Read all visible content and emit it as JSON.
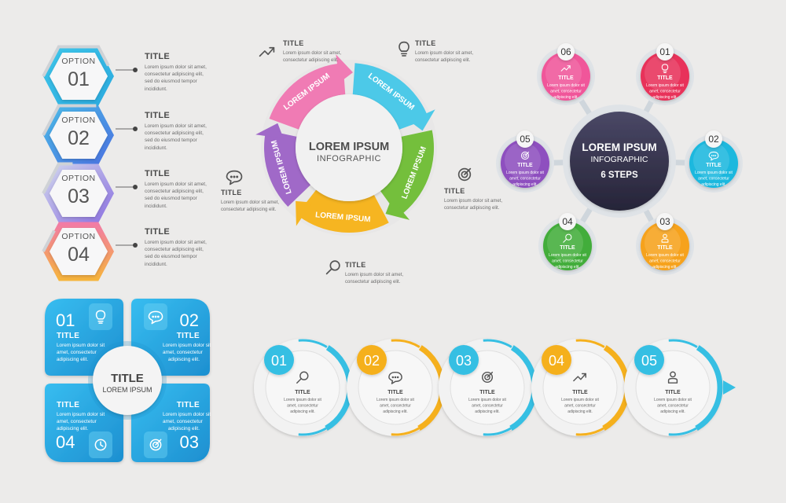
{
  "body_lines": [
    "Lorem ipsum dolor sit amet,",
    "consectetur adipiscing elit,",
    "sed do eiusmod tempor",
    "incididunt."
  ],
  "short_lines": [
    "Lorem ipsum dolor sit",
    "amet, consectetur",
    "adipiscing elit."
  ],
  "mini_lines": [
    "Lorem ipsum dolor sit amet,",
    "consectetur adipiscing elit."
  ],
  "hex_options": {
    "word": "OPTION",
    "items": [
      {
        "number": "01",
        "title": "TITLE",
        "color": "#2fb9e3"
      },
      {
        "number": "02",
        "title": "TITLE",
        "color": "#4a8be0"
      },
      {
        "number": "03",
        "title": "TITLE",
        "color": "#8a7fe0"
      },
      {
        "number": "04",
        "title": "TITLE",
        "color": "#f59a3c"
      }
    ]
  },
  "wheel": {
    "title": "LOREM IPSUM",
    "subtitle": "INFOGRAPHIC",
    "segments": [
      {
        "label": "LOREM IPSUM",
        "color": "#f07bb4"
      },
      {
        "label": "LOREM IPSUM",
        "color": "#4cc9e8"
      },
      {
        "label": "LOREM IPSUM",
        "color": "#74bf3c"
      },
      {
        "label": "LOREM IPSUM",
        "color": "#f6b521"
      },
      {
        "label": "LOREM IPSUM",
        "color": "#a069c8"
      }
    ],
    "callouts": [
      {
        "title": "TITLE",
        "icon": "trend-arrow-icon"
      },
      {
        "title": "TITLE",
        "icon": "lightbulb-icon"
      },
      {
        "title": "TITLE",
        "icon": "target-icon"
      },
      {
        "title": "TITLE",
        "icon": "magnifier-icon"
      },
      {
        "title": "TITLE",
        "icon": "chat-bubble-icon"
      }
    ]
  },
  "six_steps": {
    "title": "LOREM IPSUM",
    "subtitle": "INFOGRAPHIC",
    "steps_label": "6 STEPS",
    "center_color": "#363450",
    "nodes": [
      {
        "number": "06",
        "title": "TITLE",
        "color": "#f0569a",
        "icon": "trend-arrow-icon"
      },
      {
        "number": "01",
        "title": "TITLE",
        "color": "#e8335a",
        "icon": "lightbulb-icon"
      },
      {
        "number": "05",
        "title": "TITLE",
        "color": "#8e4fbf",
        "icon": "target-icon"
      },
      {
        "number": "02",
        "title": "TITLE",
        "color": "#1ab8de",
        "icon": "chat-bubble-icon"
      },
      {
        "number": "04",
        "title": "TITLE",
        "color": "#43ad3a",
        "icon": "magnifier-icon"
      },
      {
        "number": "03",
        "title": "TITLE",
        "color": "#f6a21c",
        "icon": "user-icon"
      }
    ]
  },
  "quadrant": {
    "center_title": "TITLE",
    "center_subtitle": "LOREM IPSUM",
    "color": "#1ea6de",
    "items": [
      {
        "number": "01",
        "title": "TITLE",
        "icon": "lightbulb-icon"
      },
      {
        "number": "02",
        "title": "TITLE",
        "icon": "chat-bubble-icon"
      },
      {
        "number": "04",
        "title": "TITLE",
        "icon": "clock-icon"
      },
      {
        "number": "03",
        "title": "TITLE",
        "icon": "target-icon"
      }
    ]
  },
  "timeline": {
    "steps": [
      {
        "number": "01",
        "title": "TITLE",
        "color": "#36bfe3",
        "icon": "magnifier-icon"
      },
      {
        "number": "02",
        "title": "TITLE",
        "color": "#f5b01d",
        "icon": "chat-bubble-icon"
      },
      {
        "number": "03",
        "title": "TITLE",
        "color": "#36bfe3",
        "icon": "target-icon"
      },
      {
        "number": "04",
        "title": "TITLE",
        "color": "#f5b01d",
        "icon": "trend-arrow-icon"
      },
      {
        "number": "05",
        "title": "TITLE",
        "color": "#36bfe3",
        "icon": "user-icon"
      }
    ]
  }
}
